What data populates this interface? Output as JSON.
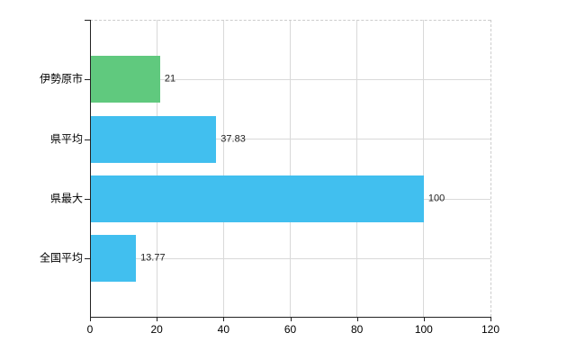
{
  "chart_data": {
    "type": "bar",
    "orientation": "horizontal",
    "title": "",
    "categories": [
      "伊勢原市",
      "県平均",
      "県最大",
      "全国平均"
    ],
    "values": [
      21,
      37.83,
      100,
      13.77
    ],
    "value_labels": [
      "21",
      "37.83",
      "100",
      "13.77"
    ],
    "xlabel": "",
    "ylabel": "",
    "xlim": [
      0,
      120
    ],
    "x_ticks": [
      0,
      20,
      40,
      60,
      80,
      100,
      120
    ],
    "x_tick_labels": [
      "0",
      "20",
      "40",
      "60",
      "80",
      "100",
      "120"
    ],
    "grid": true,
    "legend": "none",
    "colors": {
      "bar_default": "#41bfef",
      "bar_highlight": "#60c97e",
      "highlight_index": 0,
      "axis": "#222222",
      "gridline": "#d9d9d9",
      "dashed_border": "#cccccc",
      "text": "#000000"
    }
  }
}
